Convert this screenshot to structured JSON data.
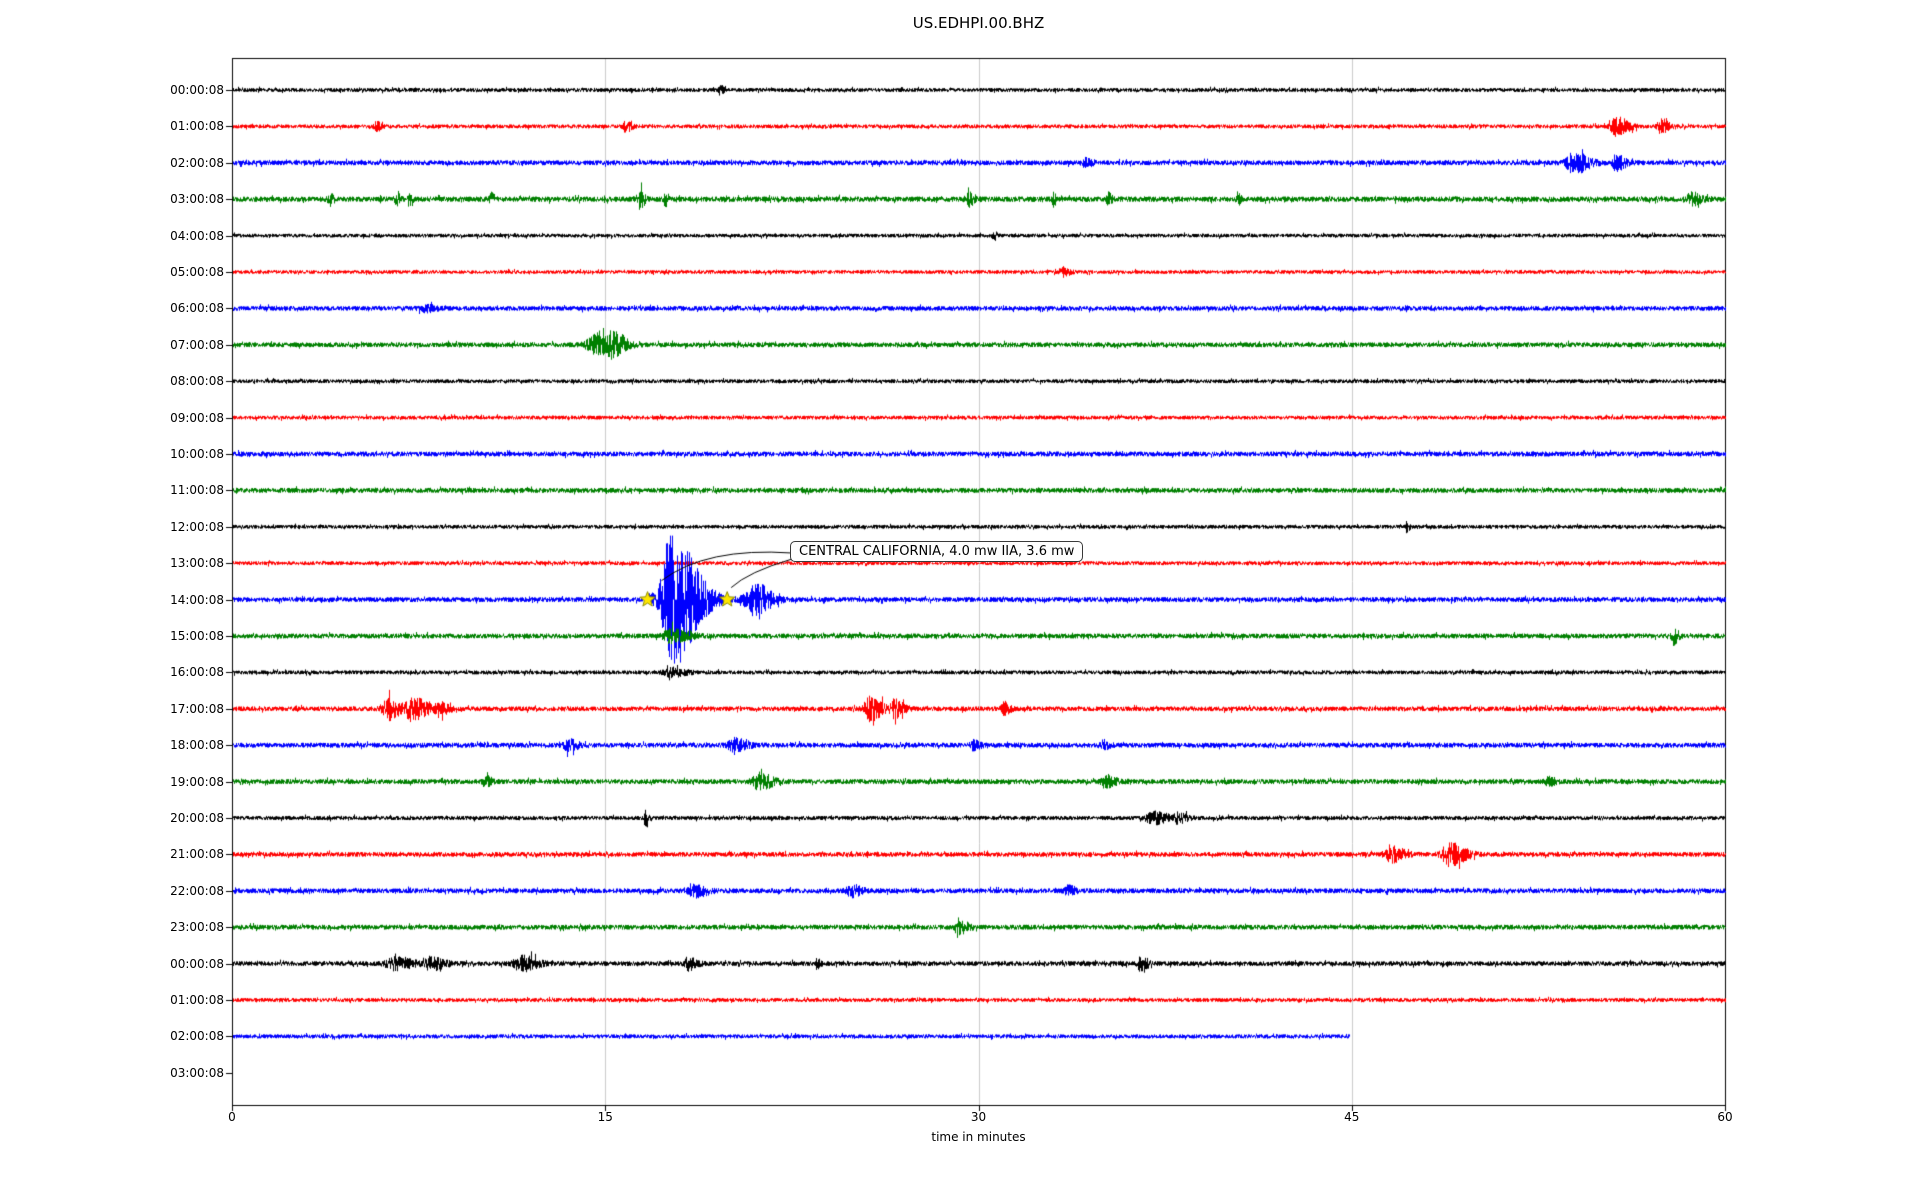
{
  "chart_data": {
    "type": "line",
    "subtype": "seismogram-helicorder",
    "title": "US.EDHPI.00.BHZ",
    "xlabel": "time in minutes",
    "xlim": [
      0,
      60
    ],
    "x_ticks": [
      0,
      15,
      30,
      45,
      60
    ],
    "grid_minutes": [
      15,
      30,
      45
    ],
    "grid": "vertical-only",
    "trace_color_cycle": [
      "#000000",
      "#ff0000",
      "#0000ff",
      "#008000"
    ],
    "events_format": "[minute, amplitude_px, attack_min, decay_min]",
    "annotation": {
      "text": "CENTRAL CALIFORNIA, 4.0 mw IIA, 3.6 mw",
      "row_index": 14,
      "row_label": "14:00:08",
      "pick_minutes": [
        16.7,
        19.9
      ],
      "marker": "yellow-star"
    },
    "rows": [
      {
        "label": "00:00:08",
        "color": "#000000",
        "base_amp": 2.0,
        "events": [
          [
            19.6,
            4.5,
            0.05,
            0.1
          ]
        ]
      },
      {
        "label": "01:00:08",
        "color": "#ff0000",
        "base_amp": 2.0,
        "events": [
          [
            5.8,
            4,
            0.08,
            0.15
          ],
          [
            15.8,
            5,
            0.08,
            0.2
          ],
          [
            55.6,
            9,
            0.15,
            0.4
          ],
          [
            57.4,
            7,
            0.1,
            0.25
          ]
        ]
      },
      {
        "label": "02:00:08",
        "color": "#0000ff",
        "base_amp": 2.5,
        "events": [
          [
            34.3,
            3.5,
            0.1,
            0.2
          ],
          [
            53.9,
            10,
            0.2,
            0.5
          ],
          [
            55.6,
            7,
            0.1,
            0.3
          ]
        ]
      },
      {
        "label": "03:00:08",
        "color": "#008000",
        "base_amp": 2.7,
        "events": [
          [
            3.9,
            7,
            0.05,
            0.1
          ],
          [
            6.6,
            9,
            0.05,
            0.1
          ],
          [
            7.1,
            6,
            0.05,
            0.1
          ],
          [
            10.4,
            6,
            0.05,
            0.1
          ],
          [
            16.4,
            11,
            0.06,
            0.12
          ],
          [
            17.4,
            6,
            0.05,
            0.1
          ],
          [
            29.6,
            6,
            0.1,
            0.2
          ],
          [
            33.0,
            6,
            0.05,
            0.1
          ],
          [
            35.2,
            7,
            0.05,
            0.1
          ],
          [
            40.4,
            5,
            0.05,
            0.1
          ],
          [
            58.6,
            6,
            0.1,
            0.3
          ]
        ]
      },
      {
        "label": "04:00:08",
        "color": "#000000",
        "base_amp": 1.9,
        "events": [
          [
            30.6,
            5,
            0.05,
            0.1
          ]
        ]
      },
      {
        "label": "05:00:08",
        "color": "#ff0000",
        "base_amp": 1.9,
        "events": [
          [
            33.4,
            4,
            0.1,
            0.2
          ]
        ]
      },
      {
        "label": "06:00:08",
        "color": "#0000ff",
        "base_amp": 2.4,
        "events": [
          [
            7.8,
            3,
            0.2,
            0.3
          ]
        ]
      },
      {
        "label": "07:00:08",
        "color": "#008000",
        "base_amp": 2.5,
        "events": [
          [
            14.7,
            10,
            0.3,
            0.3
          ],
          [
            15.3,
            13,
            0.15,
            0.4
          ]
        ]
      },
      {
        "label": "08:00:08",
        "color": "#000000",
        "base_amp": 2.0,
        "events": []
      },
      {
        "label": "09:00:08",
        "color": "#ff0000",
        "base_amp": 2.0,
        "events": []
      },
      {
        "label": "10:00:08",
        "color": "#0000ff",
        "base_amp": 2.5,
        "events": []
      },
      {
        "label": "11:00:08",
        "color": "#008000",
        "base_amp": 2.5,
        "events": []
      },
      {
        "label": "12:00:08",
        "color": "#000000",
        "base_amp": 2.0,
        "events": [
          [
            47.2,
            5,
            0.04,
            0.08
          ]
        ]
      },
      {
        "label": "13:00:08",
        "color": "#ff0000",
        "base_amp": 2.0,
        "events": []
      },
      {
        "label": "14:00:08",
        "color": "#0000ff",
        "base_amp": 2.5,
        "events": [
          [
            16.8,
            5,
            0.08,
            0.1
          ],
          [
            17.6,
            68,
            0.25,
            0.85
          ],
          [
            21.0,
            16,
            0.3,
            0.5
          ]
        ]
      },
      {
        "label": "15:00:08",
        "color": "#008000",
        "base_amp": 2.5,
        "events": [
          [
            17.6,
            6,
            0.2,
            0.6
          ],
          [
            57.9,
            9,
            0.05,
            0.15
          ]
        ]
      },
      {
        "label": "16:00:08",
        "color": "#000000",
        "base_amp": 2.0,
        "events": [
          [
            17.6,
            4,
            0.2,
            0.5
          ]
        ]
      },
      {
        "label": "17:00:08",
        "color": "#ff0000",
        "base_amp": 2.4,
        "events": [
          [
            6.3,
            10,
            0.2,
            0.4
          ],
          [
            7.2,
            11,
            0.15,
            0.5
          ],
          [
            8.3,
            6,
            0.1,
            0.3
          ],
          [
            25.6,
            12,
            0.15,
            0.4
          ],
          [
            26.6,
            8,
            0.1,
            0.3
          ],
          [
            31.0,
            6,
            0.08,
            0.2
          ]
        ]
      },
      {
        "label": "18:00:08",
        "color": "#0000ff",
        "base_amp": 2.5,
        "events": [
          [
            13.5,
            5,
            0.15,
            0.3
          ],
          [
            20.2,
            6,
            0.2,
            0.4
          ],
          [
            29.8,
            4.5,
            0.1,
            0.2
          ],
          [
            35.0,
            4,
            0.1,
            0.2
          ]
        ]
      },
      {
        "label": "19:00:08",
        "color": "#008000",
        "base_amp": 2.5,
        "events": [
          [
            10.2,
            4.5,
            0.1,
            0.2
          ],
          [
            21.2,
            8,
            0.2,
            0.4
          ],
          [
            35.1,
            5.5,
            0.15,
            0.3
          ],
          [
            52.9,
            4,
            0.1,
            0.2
          ]
        ]
      },
      {
        "label": "20:00:08",
        "color": "#000000",
        "base_amp": 2.1,
        "events": [
          [
            16.6,
            8,
            0.05,
            0.1
          ],
          [
            37.0,
            5.5,
            0.2,
            0.5
          ],
          [
            38.0,
            4.5,
            0.1,
            0.3
          ]
        ]
      },
      {
        "label": "21:00:08",
        "color": "#ff0000",
        "base_amp": 2.4,
        "events": [
          [
            46.6,
            7,
            0.2,
            0.4
          ],
          [
            48.9,
            11,
            0.2,
            0.5
          ]
        ]
      },
      {
        "label": "22:00:08",
        "color": "#0000ff",
        "base_amp": 2.5,
        "events": [
          [
            18.6,
            5.5,
            0.2,
            0.4
          ],
          [
            24.9,
            5.5,
            0.15,
            0.3
          ],
          [
            33.6,
            5,
            0.1,
            0.2
          ]
        ]
      },
      {
        "label": "23:00:08",
        "color": "#008000",
        "base_amp": 2.5,
        "events": [
          [
            29.2,
            6,
            0.15,
            0.3
          ]
        ]
      },
      {
        "label": "00:00:08",
        "color": "#000000",
        "base_amp": 2.4,
        "events": [
          [
            6.6,
            6,
            0.3,
            0.5
          ],
          [
            8.0,
            6,
            0.2,
            0.4
          ],
          [
            11.6,
            7,
            0.2,
            0.5
          ],
          [
            18.3,
            6,
            0.1,
            0.3
          ],
          [
            23.5,
            5,
            0.05,
            0.1
          ],
          [
            36.5,
            9,
            0.08,
            0.2
          ]
        ]
      },
      {
        "label": "01:00:08",
        "color": "#ff0000",
        "base_amp": 2.0,
        "events": []
      },
      {
        "label": "02:00:08",
        "color": "#0000ff",
        "base_amp": 2.1,
        "end_minute": 44.9,
        "events": []
      },
      {
        "label": "03:00:08",
        "color": null,
        "base_amp": 0,
        "trace": false,
        "events": []
      }
    ]
  }
}
